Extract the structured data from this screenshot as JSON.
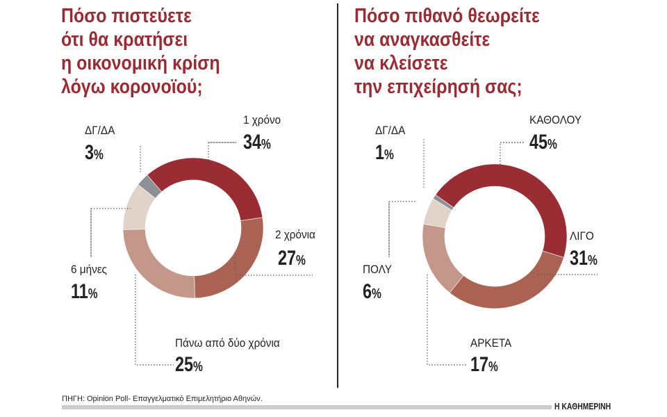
{
  "chart_data": [
    {
      "type": "pie",
      "variant": "donut",
      "title": "Πόσο πιστεύετε\nότι θα κρατήσει\nη οικονομική κρίση\nλόγω κορονοϊού;",
      "categories": [
        "1 χρόνο",
        "2 χρόνια",
        "Πάνω από δύο χρόνια",
        "6 μήνες",
        "ΔΓ/ΔΑ"
      ],
      "values": [
        34,
        27,
        25,
        11,
        3
      ],
      "colors": [
        "#9a2c33",
        "#aa6352",
        "#c3978a",
        "#e1d3c8",
        "#8d9095"
      ],
      "unit": "%"
    },
    {
      "type": "pie",
      "variant": "donut",
      "title": "Πόσο πιθανό θεωρείτε\nνα αναγκασθείτε\nνα κλείσετε\nτην επιχείρησή σας;",
      "categories": [
        "ΚΑΘΟΛΟΥ",
        "ΛΙΓΟ",
        "ΑΡΚΕΤΑ",
        "ΠΟΛΥ",
        "ΔΓ/ΔΑ"
      ],
      "values": [
        45,
        31,
        17,
        6,
        1
      ],
      "colors": [
        "#9a2c33",
        "#aa6352",
        "#c3978a",
        "#e1d3c8",
        "#8d9095"
      ],
      "unit": "%"
    }
  ],
  "source": "ΠΗΓΗ: Opinion Poll- Επαγγελματικό Επιμελητήριο Αθηνών.",
  "brand": "Η ΚΑΘΗΜΕΡΙΝΗ"
}
